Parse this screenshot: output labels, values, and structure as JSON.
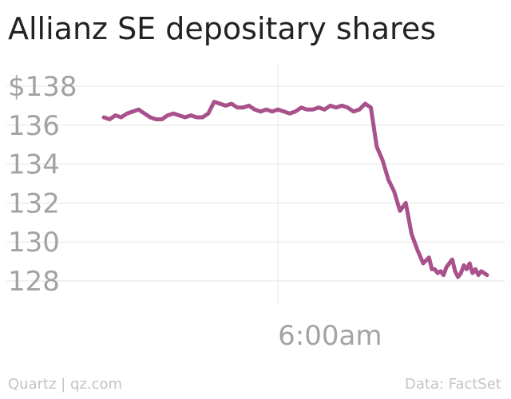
{
  "title": "Allianz SE depositary shares",
  "footer": {
    "credit": "Quartz | qz.com",
    "source": "Data: FactSet"
  },
  "colors": {
    "line": "#a8518a",
    "grid": "#e6e6e6",
    "tick_text": "#a3a3a3"
  },
  "chart_data": {
    "type": "line",
    "title": "Allianz SE depositary shares",
    "xlabel": "",
    "ylabel": "",
    "ylim": [
      127.4,
      138.6
    ],
    "y_ticks": [
      {
        "value": 138,
        "label": "$138"
      },
      {
        "value": 136,
        "label": "136"
      },
      {
        "value": 134,
        "label": "134"
      },
      {
        "value": 132,
        "label": "132"
      },
      {
        "value": 130,
        "label": "130"
      },
      {
        "value": 128,
        "label": "128"
      }
    ],
    "xlim": [
      0,
      132
    ],
    "x_ticks": [
      {
        "value": 60,
        "label": "6:00am"
      }
    ],
    "grid": true,
    "legend": "none",
    "x": [
      0,
      2,
      4,
      6,
      8,
      10,
      12,
      14,
      16,
      18,
      20,
      22,
      24,
      26,
      28,
      30,
      32,
      34,
      36,
      38,
      40,
      42,
      44,
      46,
      48,
      50,
      52,
      54,
      56,
      58,
      60,
      62,
      64,
      66,
      68,
      70,
      72,
      74,
      76,
      78,
      80,
      82,
      84,
      86,
      88,
      90,
      92,
      94,
      96,
      98,
      100,
      102,
      104,
      106,
      108,
      110,
      112,
      113,
      114,
      115,
      116,
      117,
      118,
      119,
      120,
      121,
      122,
      123,
      124,
      125,
      126,
      127,
      128,
      129,
      130,
      131,
      132
    ],
    "y": [
      136.4,
      136.3,
      136.5,
      136.4,
      136.6,
      136.7,
      136.8,
      136.6,
      136.4,
      136.3,
      136.3,
      136.5,
      136.6,
      136.5,
      136.4,
      136.5,
      136.4,
      136.4,
      136.6,
      137.2,
      137.1,
      137.0,
      137.1,
      136.9,
      136.9,
      137.0,
      136.8,
      136.7,
      136.8,
      136.7,
      136.8,
      136.7,
      136.6,
      136.7,
      136.9,
      136.8,
      136.8,
      136.9,
      136.8,
      137.0,
      136.9,
      137.0,
      136.9,
      136.7,
      136.8,
      137.1,
      136.9,
      134.9,
      134.2,
      133.2,
      132.6,
      131.6,
      132.0,
      130.4,
      129.6,
      128.9,
      129.2,
      128.6,
      128.6,
      128.4,
      128.5,
      128.3,
      128.7,
      128.9,
      129.1,
      128.5,
      128.2,
      128.4,
      128.8,
      128.6,
      128.9,
      128.4,
      128.6,
      128.3,
      128.5,
      128.4,
      128.3
    ]
  }
}
